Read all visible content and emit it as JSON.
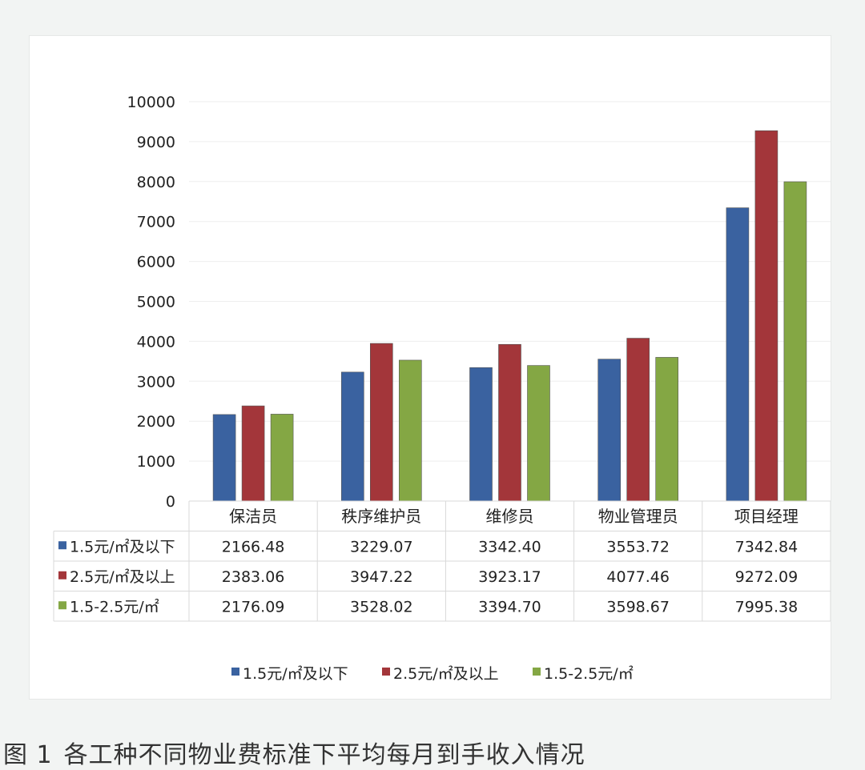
{
  "caption": {
    "figure_label": "图 1",
    "text": "各工种不同物业费标准下平均每月到手收入情况"
  },
  "colors": {
    "series_0": "#3a62a0",
    "series_1": "#a3363a",
    "series_2": "#84a744",
    "grid": "#eeeeee",
    "table_line": "#d9d9d9",
    "text": "#222222"
  },
  "chart_data": {
    "type": "bar",
    "title": "",
    "xlabel": "",
    "ylabel": "",
    "ylim": [
      0,
      10000
    ],
    "yticks": [
      "0",
      "1000",
      "2000",
      "3000",
      "4000",
      "5000",
      "6000",
      "7000",
      "8000",
      "9000",
      "10000"
    ],
    "grid": true,
    "legend_position": "bottom",
    "data_table": true,
    "categories": [
      "保洁员",
      "秩序维护员",
      "维修员",
      "物业管理员",
      "项目经理"
    ],
    "series": [
      {
        "name": "1.5元/㎡及以下",
        "values": [
          2166.48,
          3229.07,
          3342.4,
          3553.72,
          7342.84
        ],
        "labels": [
          "2166.48",
          "3229.07",
          "3342.40",
          "3553.72",
          "7342.84"
        ]
      },
      {
        "name": "2.5元/㎡及以上",
        "values": [
          2383.06,
          3947.22,
          3923.17,
          4077.46,
          9272.09
        ],
        "labels": [
          "2383.06",
          "3947.22",
          "3923.17",
          "4077.46",
          "9272.09"
        ]
      },
      {
        "name": "1.5-2.5元/㎡",
        "values": [
          2176.09,
          3528.02,
          3394.7,
          3598.67,
          7995.38
        ],
        "labels": [
          "2176.09",
          "3528.02",
          "3394.70",
          "3598.67",
          "7995.38"
        ]
      }
    ]
  }
}
